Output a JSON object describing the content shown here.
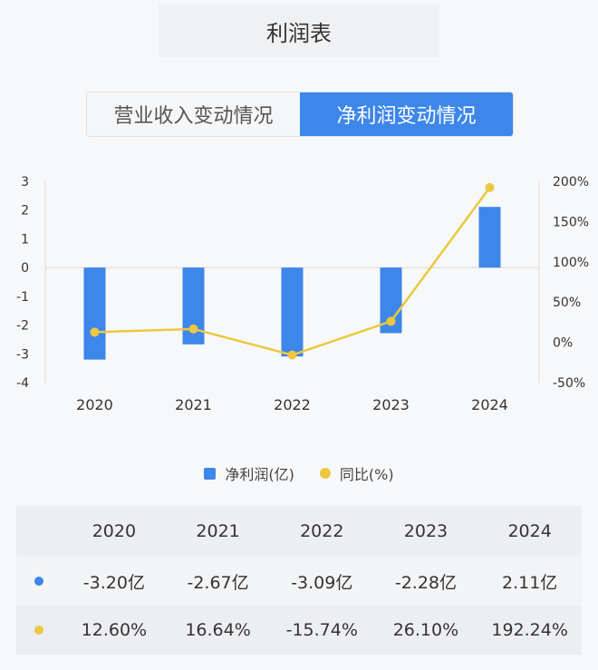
{
  "header": {
    "title": "利润表"
  },
  "tabs": [
    {
      "label": "营业收入变动情况",
      "active": false
    },
    {
      "label": "净利润变动情况",
      "active": true
    }
  ],
  "colors": {
    "bar": "#3d86ea",
    "line": "#ecc840",
    "active_tab": "#3d86ea"
  },
  "chart_data": {
    "type": "bar",
    "categories": [
      "2020",
      "2021",
      "2022",
      "2023",
      "2024"
    ],
    "series": [
      {
        "name": "净利润(亿)",
        "type": "bar",
        "axis": "left",
        "values": [
          -3.2,
          -2.67,
          -3.09,
          -2.28,
          2.11
        ]
      },
      {
        "name": "同比(%)",
        "type": "line",
        "axis": "right",
        "values": [
          12.6,
          16.64,
          -15.74,
          26.1,
          192.24
        ]
      }
    ],
    "left_axis": {
      "ylim": [
        -4,
        3
      ],
      "ticks": [
        "3",
        "2",
        "1",
        "0",
        "-1",
        "-2",
        "-3",
        "-4"
      ]
    },
    "right_axis": {
      "ylim": [
        -50,
        200
      ],
      "ticks": [
        "200%",
        "150%",
        "100%",
        "50%",
        "0%",
        "-50%"
      ]
    },
    "legend_position": "bottom-center"
  },
  "legend": {
    "bar_label": "净利润(亿)",
    "line_label": "同比(%)"
  },
  "table": {
    "columns": [
      "2020",
      "2021",
      "2022",
      "2023",
      "2024"
    ],
    "rows": [
      {
        "type": "bar",
        "values": [
          "-3.20亿",
          "-2.67亿",
          "-3.09亿",
          "-2.28亿",
          "2.11亿"
        ]
      },
      {
        "type": "line",
        "values": [
          "12.60%",
          "16.64%",
          "-15.74%",
          "26.10%",
          "192.24%"
        ]
      }
    ]
  }
}
